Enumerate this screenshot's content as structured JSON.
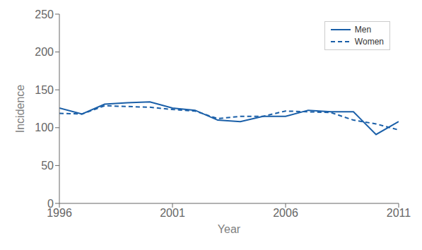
{
  "chart_data": {
    "type": "line",
    "x": [
      1996,
      1997,
      1998,
      1999,
      2000,
      2001,
      2002,
      2003,
      2004,
      2005,
      2006,
      2007,
      2008,
      2009,
      2010,
      2011
    ],
    "series": [
      {
        "name": "Men",
        "color": "#1a5fa8",
        "line_style": "solid",
        "values": [
          126,
          118,
          131,
          133,
          134,
          126,
          123,
          110,
          108,
          115,
          115,
          123,
          121,
          121,
          91,
          108
        ]
      },
      {
        "name": "Women",
        "color": "#1a5fa8",
        "line_style": "dashed",
        "values": [
          119,
          118,
          129,
          128,
          127,
          124,
          122,
          112,
          115,
          115,
          122,
          121,
          120,
          110,
          105,
          97
        ]
      }
    ],
    "xlim": [
      1996,
      2011
    ],
    "xticks": [
      1996,
      2001,
      2006,
      2011
    ],
    "ylim": [
      0,
      250
    ],
    "yticks": [
      0,
      50,
      100,
      150,
      200,
      250
    ],
    "xlabel": "Year",
    "ylabel": "Incidence",
    "grid": false,
    "legend": "upper right"
  }
}
